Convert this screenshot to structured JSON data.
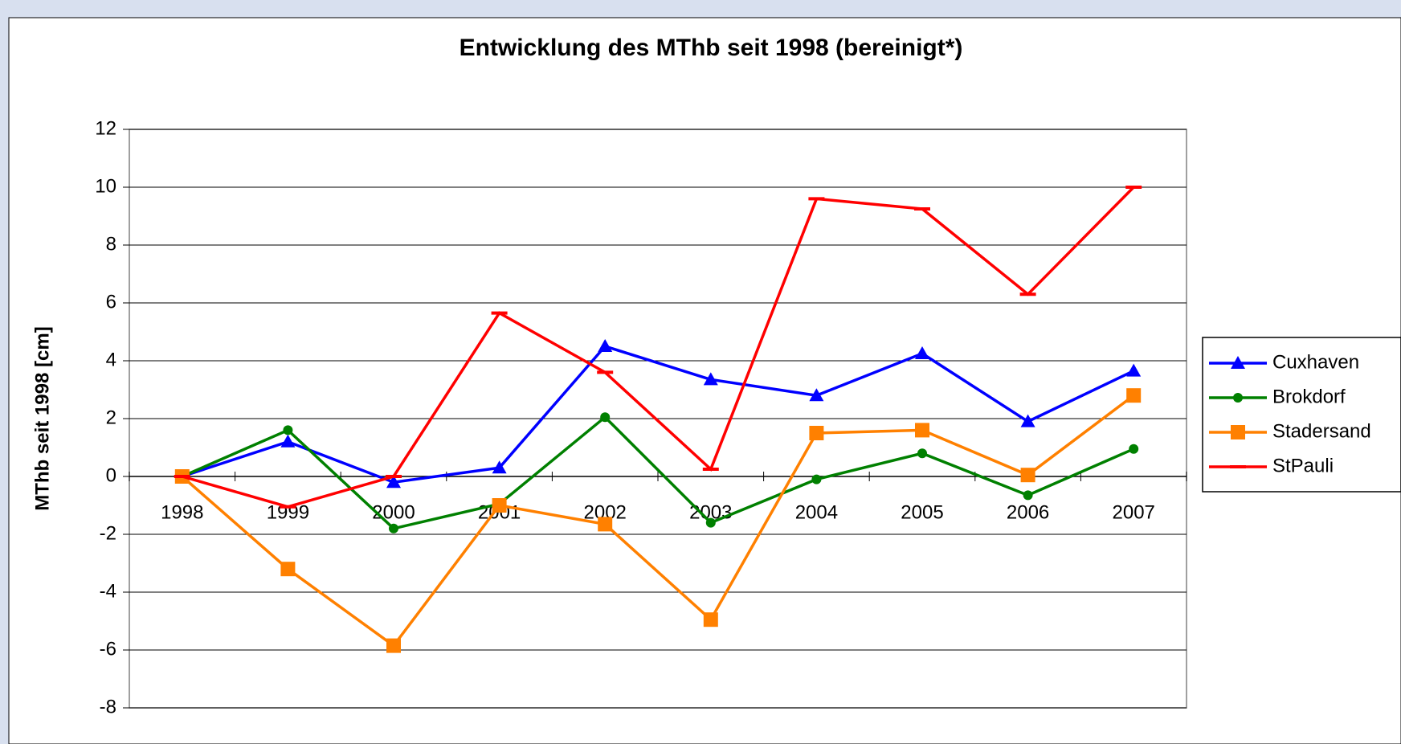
{
  "chart_data": {
    "type": "line",
    "title": "Entwicklung des MThb seit 1998 (bereinigt*)",
    "y_label": "MThb seit 1998 [cm]",
    "categories": [
      "1998",
      "1999",
      "2000",
      "2001",
      "2002",
      "2003",
      "2004",
      "2005",
      "2006",
      "2007"
    ],
    "series": [
      {
        "name": "Cuxhaven",
        "color": "#0000ff",
        "marker": "triangle",
        "values": [
          0,
          1.2,
          -0.2,
          0.3,
          4.5,
          3.35,
          2.8,
          4.25,
          1.9,
          3.65
        ]
      },
      {
        "name": "Brokdorf",
        "color": "#008000",
        "marker": "circle",
        "values": [
          0,
          1.6,
          -1.8,
          -0.95,
          2.05,
          -1.6,
          -0.1,
          0.8,
          -0.65,
          0.95
        ]
      },
      {
        "name": "Stadersand",
        "color": "#ff8000",
        "marker": "square",
        "values": [
          0,
          -3.2,
          -5.85,
          -1.0,
          -1.65,
          -4.95,
          1.5,
          1.6,
          0.05,
          2.8
        ]
      },
      {
        "name": "StPauli",
        "color": "#ff0000",
        "marker": "dash",
        "values": [
          0,
          -1.05,
          0,
          5.65,
          3.6,
          0.25,
          9.6,
          9.25,
          6.3,
          10.0
        ]
      }
    ],
    "ylim": [
      -8,
      12
    ],
    "yticks": [
      -8,
      -6,
      -4,
      -2,
      0,
      2,
      4,
      6,
      8,
      10,
      12
    ],
    "grid": true,
    "legend": "right"
  }
}
